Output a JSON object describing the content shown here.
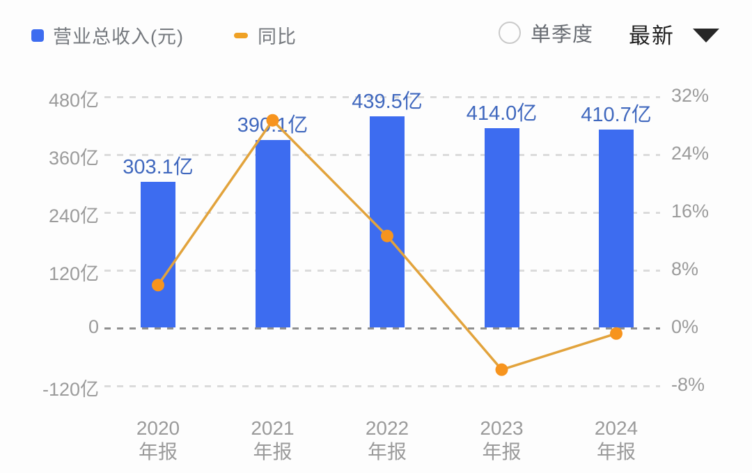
{
  "legend": {
    "revenue": {
      "label": "营业总收入(元)",
      "color": "#3d6cf0"
    },
    "yoy": {
      "label": "同比",
      "color": "#efa125"
    }
  },
  "controls": {
    "radio_label": "单季度",
    "radio_checked": false,
    "dropdown_value": "最新"
  },
  "chart_data": {
    "type": "bar+line",
    "categories": [
      "2020 年报",
      "2021 年报",
      "2022 年报",
      "2023 年报",
      "2024 年报"
    ],
    "series": [
      {
        "name": "营业总收入(元)",
        "type": "bar",
        "unit": "亿",
        "values": [
          303.1,
          390.1,
          439.5,
          414.0,
          410.7
        ],
        "labels": [
          "303.1亿",
          "390.1亿",
          "439.5亿",
          "414.0亿",
          "410.7亿"
        ],
        "color": "#3d6cf0",
        "label_color": "#4068be"
      },
      {
        "name": "同比",
        "type": "line",
        "unit": "%",
        "values": [
          5.9,
          28.7,
          12.7,
          -5.8,
          -0.8
        ],
        "line_color": "#e2a33c",
        "point_color": "#f7941e"
      }
    ],
    "left_axis": {
      "ticks": [
        "480亿",
        "360亿",
        "240亿",
        "120亿",
        "0",
        "-120亿"
      ],
      "min": -120,
      "max": 480,
      "step": 120
    },
    "right_axis": {
      "ticks": [
        "32%",
        "24%",
        "16%",
        "8%",
        "0%",
        "-8%"
      ],
      "min": -8,
      "max": 32,
      "step": 8
    },
    "grid": "dashed-horizontal",
    "legend_position": "top-left"
  }
}
